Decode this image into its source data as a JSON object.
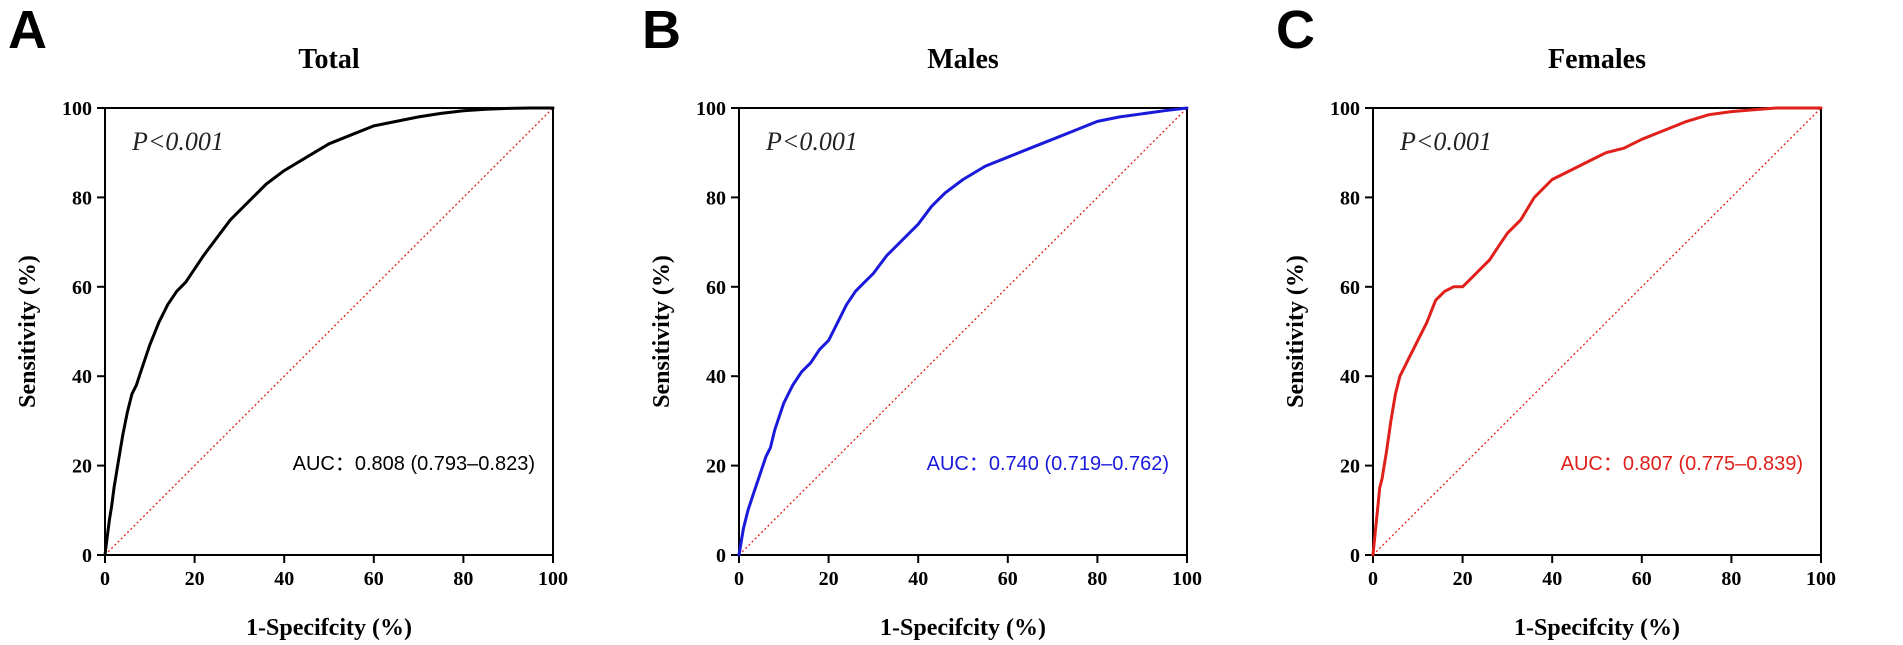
{
  "figure": {
    "panels": [
      {
        "letter": "A",
        "color": "#000000"
      },
      {
        "letter": "B",
        "color": "#1a1adb"
      },
      {
        "letter": "C",
        "color": "#e0201b"
      }
    ]
  },
  "chart_data": [
    {
      "type": "line",
      "title": "Total",
      "xlabel": "1-Specifcity (%)",
      "ylabel": "Sensitivity (%)",
      "xlim": [
        0,
        100
      ],
      "ylim": [
        0,
        100
      ],
      "xticks": [
        "0",
        "20",
        "40",
        "60",
        "80",
        "100"
      ],
      "yticks": [
        "0",
        "20",
        "40",
        "60",
        "80",
        "100"
      ],
      "annotation_p": "P<0.001",
      "annotation_auc": "AUC：0.808 (0.793–0.823)",
      "reference_line": {
        "x": [
          0,
          100
        ],
        "y": [
          0,
          100
        ],
        "style": "dotted",
        "color": "#e0201b"
      },
      "series": [
        {
          "name": "Total",
          "color": "#000000",
          "x": [
            0,
            0.5,
            1,
            1.5,
            2,
            3,
            4,
            5,
            6,
            7,
            8,
            9,
            10,
            12,
            14,
            16,
            18,
            20,
            22,
            25,
            28,
            30,
            33,
            36,
            40,
            45,
            50,
            55,
            60,
            65,
            70,
            75,
            80,
            85,
            90,
            95,
            100
          ],
          "y": [
            0,
            4,
            8,
            11,
            15,
            21,
            27,
            32,
            36,
            38,
            41,
            44,
            47,
            52,
            56,
            59,
            61,
            64,
            67,
            71,
            75,
            77,
            80,
            83,
            86,
            89,
            92,
            94,
            96,
            97,
            98,
            98.8,
            99.4,
            99.7,
            99.9,
            100,
            100
          ]
        }
      ]
    },
    {
      "type": "line",
      "title": "Males",
      "xlabel": "1-Specifcity (%)",
      "ylabel": "Sensitivity (%)",
      "xlim": [
        0,
        100
      ],
      "ylim": [
        0,
        100
      ],
      "xticks": [
        "0",
        "20",
        "40",
        "60",
        "80",
        "100"
      ],
      "yticks": [
        "0",
        "20",
        "40",
        "60",
        "80",
        "100"
      ],
      "annotation_p": "P<0.001",
      "annotation_auc": "AUC：0.740 (0.719–0.762)",
      "reference_line": {
        "x": [
          0,
          100
        ],
        "y": [
          0,
          100
        ],
        "style": "dotted",
        "color": "#e0201b"
      },
      "series": [
        {
          "name": "Males",
          "color": "#1a1adb",
          "x": [
            0,
            0.5,
            1,
            2,
            3,
            4,
            5,
            6,
            7,
            8,
            9,
            10,
            12,
            14,
            16,
            18,
            20,
            22,
            24,
            26,
            28,
            30,
            33,
            36,
            40,
            43,
            46,
            50,
            55,
            60,
            65,
            70,
            75,
            80,
            85,
            90,
            95,
            100
          ],
          "y": [
            0,
            3,
            6,
            10,
            13,
            16,
            19,
            22,
            24,
            28,
            31,
            34,
            38,
            41,
            43,
            46,
            48,
            52,
            56,
            59,
            61,
            63,
            67,
            70,
            74,
            78,
            81,
            84,
            87,
            89,
            91,
            93,
            95,
            97,
            98,
            98.7,
            99.4,
            100
          ]
        }
      ]
    },
    {
      "type": "line",
      "title": "Females",
      "xlabel": "1-Specifcity (%)",
      "ylabel": "Sensitivity (%)",
      "xlim": [
        0,
        100
      ],
      "ylim": [
        0,
        100
      ],
      "xticks": [
        "0",
        "20",
        "40",
        "60",
        "80",
        "100"
      ],
      "yticks": [
        "0",
        "20",
        "40",
        "60",
        "80",
        "100"
      ],
      "annotation_p": "P<0.001",
      "annotation_auc": "AUC：0.807 (0.775–0.839)",
      "reference_line": {
        "x": [
          0,
          100
        ],
        "y": [
          0,
          100
        ],
        "style": "dotted",
        "color": "#e0201b"
      },
      "series": [
        {
          "name": "Females",
          "color": "#e0201b",
          "x": [
            0,
            0.5,
            1,
            1.5,
            2,
            3,
            4,
            5,
            6,
            7,
            8,
            9,
            10,
            12,
            14,
            16,
            18,
            20,
            22,
            24,
            26,
            28,
            30,
            33,
            36,
            40,
            44,
            48,
            52,
            56,
            60,
            65,
            70,
            75,
            80,
            85,
            90,
            95,
            100
          ],
          "y": [
            0,
            5,
            10,
            15,
            17,
            23,
            30,
            36,
            40,
            42,
            44,
            46,
            48,
            52,
            57,
            59,
            60,
            60,
            62,
            64,
            66,
            69,
            72,
            75,
            80,
            84,
            86,
            88,
            90,
            91,
            93,
            95,
            97,
            98.5,
            99.2,
            99.6,
            100,
            100,
            100
          ]
        }
      ]
    }
  ]
}
